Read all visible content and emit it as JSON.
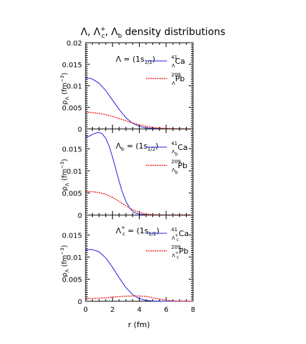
{
  "title": {
    "parts": [
      "Λ, Λ",
      "+",
      "c",
      ", Λ",
      "b",
      " density distributions"
    ]
  },
  "xlabel": "r (fm)",
  "xticks": [
    "0",
    "2",
    "4",
    "6",
    "8"
  ],
  "panels": [
    {
      "ylabel_main": "ρ",
      "ylabel_sub": "Λ",
      "ylabel_rest": " (fm",
      "ylabel_sup": "−3",
      "ylabel_end": ")",
      "yticks": [
        "0",
        "0.005",
        "0.01",
        "0.015",
        "0.02"
      ],
      "state": {
        "sym": "Λ",
        "sup": "",
        "sub": "",
        "eq": " = (1s",
        "eqsub": "1/2",
        "end": ")"
      },
      "legend": [
        {
          "pre": "41",
          "sub": "Λ",
          "subsup": "",
          "subsub": "",
          "name": "Ca"
        },
        {
          "pre": "209",
          "sub": "Λ",
          "subsup": "",
          "subsub": "",
          "name": "Pb"
        }
      ]
    },
    {
      "ylabel_main": "ρ",
      "ylabel_sub": "Λ",
      "ylabel_rest": " (fm",
      "ylabel_sup": "−3",
      "ylabel_end": ")",
      "yticks": [
        "0",
        "0.005",
        "0.01",
        "0.015"
      ],
      "state": {
        "sym": "Λ",
        "sup": "",
        "sub": "b",
        "eq": " = (1s",
        "eqsub": "1/2",
        "end": ")"
      },
      "legend": [
        {
          "pre": "41",
          "sub": "Λ",
          "subsup": "",
          "subsub": "b",
          "name": "Ca"
        },
        {
          "pre": "209",
          "sub": "Λ",
          "subsup": "",
          "subsub": "b",
          "name": "Pb"
        }
      ]
    },
    {
      "ylabel_main": "ρ",
      "ylabel_sub": "Λ",
      "ylabel_rest": " (fm",
      "ylabel_sup": "−3",
      "ylabel_end": ")",
      "yticks": [
        "0",
        "0.005",
        "0.01",
        "0.015"
      ],
      "state": {
        "sym": "Λ",
        "sup": "+",
        "sub": "c",
        "eq": " = (1s",
        "eqsub": "1/2",
        "end": ")"
      },
      "legend": [
        {
          "pre": "41",
          "sub": "Λ",
          "subsup": "+",
          "subsub": "c",
          "name": "Ca"
        },
        {
          "pre": "209",
          "sub": "Λ",
          "subsup": "+",
          "subsub": "c",
          "name": "Pb"
        }
      ]
    }
  ],
  "colors": {
    "ca": "#1f1fdc",
    "pb": "#e8231f",
    "axis": "#000000"
  },
  "chart_data": [
    {
      "type": "line",
      "xlim": [
        0,
        8
      ],
      "ylim": [
        0,
        0.02
      ],
      "series": [
        {
          "name": "41ΛCa",
          "style": "solid",
          "x": [
            0,
            0.5,
            1,
            1.5,
            2,
            2.5,
            3,
            3.5,
            4,
            4.5,
            5,
            6,
            7,
            8
          ],
          "y": [
            0.0119,
            0.0116,
            0.0106,
            0.0089,
            0.0067,
            0.0045,
            0.0026,
            0.0013,
            0.0006,
            0.00025,
            0.0001,
            1e-05,
            0,
            0
          ]
        },
        {
          "name": "209ΛPb",
          "style": "dotted",
          "x": [
            0,
            0.5,
            1,
            1.5,
            2,
            2.5,
            3,
            3.5,
            4,
            4.5,
            5,
            5.5,
            6,
            7,
            8
          ],
          "y": [
            0.0039,
            0.0038,
            0.0036,
            0.0033,
            0.0029,
            0.0024,
            0.0019,
            0.0014,
            0.00095,
            0.0006,
            0.00035,
            0.0002,
            0.0001,
            2e-05,
            0
          ]
        }
      ]
    },
    {
      "type": "line",
      "xlim": [
        0,
        8
      ],
      "ylim": [
        0,
        0.0195
      ],
      "series": [
        {
          "name": "41ΛbCa",
          "style": "solid",
          "x": [
            0,
            0.3,
            0.6,
            0.9,
            1.2,
            1.5,
            1.8,
            2.1,
            2.4,
            2.7,
            3,
            3.3,
            3.6,
            4,
            4.5,
            5,
            6,
            7,
            8
          ],
          "y": [
            0.0177,
            0.0179,
            0.0184,
            0.0187,
            0.0185,
            0.0174,
            0.0152,
            0.0121,
            0.0087,
            0.0055,
            0.0031,
            0.0015,
            0.0006,
            0.0002,
            5e-05,
            1e-05,
            0,
            0,
            0
          ]
        },
        {
          "name": "209ΛbPb",
          "style": "dotted",
          "x": [
            0,
            0.5,
            1,
            1.5,
            2,
            2.5,
            3,
            3.5,
            4,
            4.5,
            5,
            6,
            7,
            8
          ],
          "y": [
            0.0053,
            0.0053,
            0.0051,
            0.0047,
            0.004,
            0.0031,
            0.0021,
            0.0012,
            0.0006,
            0.00025,
            0.0001,
            1e-05,
            0,
            0
          ]
        }
      ]
    },
    {
      "type": "line",
      "xlim": [
        0,
        8
      ],
      "ylim": [
        0,
        0.0195
      ],
      "series": [
        {
          "name": "41Λ+cCa",
          "style": "solid",
          "x": [
            0,
            0.5,
            1,
            1.5,
            2,
            2.5,
            3,
            3.5,
            4,
            4.5,
            5,
            6,
            7,
            8
          ],
          "y": [
            0.0117,
            0.0117,
            0.0112,
            0.0098,
            0.0077,
            0.0053,
            0.0031,
            0.0015,
            0.0006,
            0.0002,
            5e-05,
            0,
            0,
            0
          ]
        },
        {
          "name": "209Λ+cPb",
          "style": "dotted",
          "x": [
            0,
            0.5,
            1,
            1.5,
            2,
            2.5,
            3,
            3.5,
            4,
            4.5,
            5,
            5.5,
            6,
            6.5,
            7,
            8
          ],
          "y": [
            0.0006,
            0.00065,
            0.0007,
            0.0008,
            0.00095,
            0.00105,
            0.00115,
            0.0012,
            0.0012,
            0.0011,
            0.0008,
            0.0005,
            0.00025,
            0.0001,
            3e-05,
            0
          ]
        }
      ]
    }
  ]
}
